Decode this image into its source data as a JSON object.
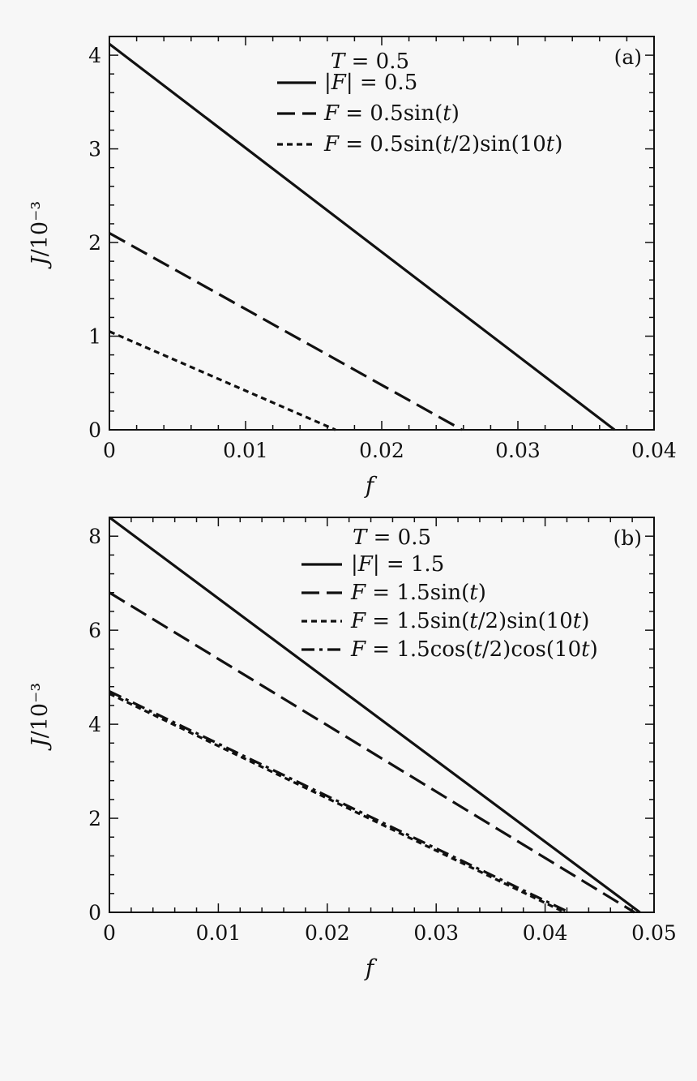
{
  "chart_data": [
    {
      "type": "line",
      "panel_label": "(a)",
      "legend_title": "T = 0.5",
      "legend_title_var": "T",
      "legend_title_rest": " = 0.5",
      "legend_position": "top-right",
      "xlabel": "f",
      "ylabel": "J/10⁻³",
      "xlim": [
        0,
        0.04
      ],
      "ylim": [
        0,
        4.2
      ],
      "xticks": [
        0,
        0.01,
        0.02,
        0.03,
        0.04
      ],
      "xtick_labels": [
        "0",
        "0.01",
        "0.02",
        "0.03",
        "0.04"
      ],
      "yticks": [
        0,
        1,
        2,
        3,
        4
      ],
      "ytick_labels": [
        "0",
        "1",
        "2",
        "3",
        "4"
      ],
      "grid": false,
      "series": [
        {
          "name": "|F| = 0.5",
          "style": "solid",
          "x": [
            0,
            0.0371
          ],
          "y": [
            4.12,
            0
          ]
        },
        {
          "name": "F = 0.5sin(t)",
          "style": "dashed",
          "x": [
            0,
            0.0259
          ],
          "y": [
            2.1,
            0
          ]
        },
        {
          "name": "F = 0.5sin(t/2)sin(10t)",
          "style": "dotted",
          "x": [
            0,
            0.0166
          ],
          "y": [
            1.05,
            0
          ]
        }
      ]
    },
    {
      "type": "line",
      "panel_label": "(b)",
      "legend_title": "T = 0.5",
      "legend_title_var": "T",
      "legend_title_rest": " = 0.5",
      "legend_position": "top-right",
      "xlabel": "f",
      "ylabel": "J/10⁻³",
      "xlim": [
        0,
        0.05
      ],
      "ylim": [
        0,
        8.4
      ],
      "xticks": [
        0,
        0.01,
        0.02,
        0.03,
        0.04,
        0.05
      ],
      "xtick_labels": [
        "0",
        "0.01",
        "0.02",
        "0.03",
        "0.04",
        "0.05"
      ],
      "yticks": [
        0,
        2,
        4,
        6,
        8
      ],
      "ytick_labels": [
        "0",
        "2",
        "4",
        "6",
        "8"
      ],
      "grid": false,
      "series": [
        {
          "name": "|F| = 1.5",
          "style": "solid",
          "x": [
            0,
            0.0487
          ],
          "y": [
            8.4,
            0
          ]
        },
        {
          "name": "F = 1.5sin(t)",
          "style": "dashed",
          "x": [
            0,
            0.0482
          ],
          "y": [
            6.8,
            0
          ]
        },
        {
          "name": "F = 1.5sin(t/2)sin(10t)",
          "style": "dotted",
          "x": [
            0,
            0.0418
          ],
          "y": [
            4.65,
            0
          ]
        },
        {
          "name": "F = 1.5cos(t/2)cos(10t)",
          "style": "dashdot",
          "x": [
            0,
            0.0422
          ],
          "y": [
            4.7,
            0
          ]
        }
      ]
    }
  ]
}
